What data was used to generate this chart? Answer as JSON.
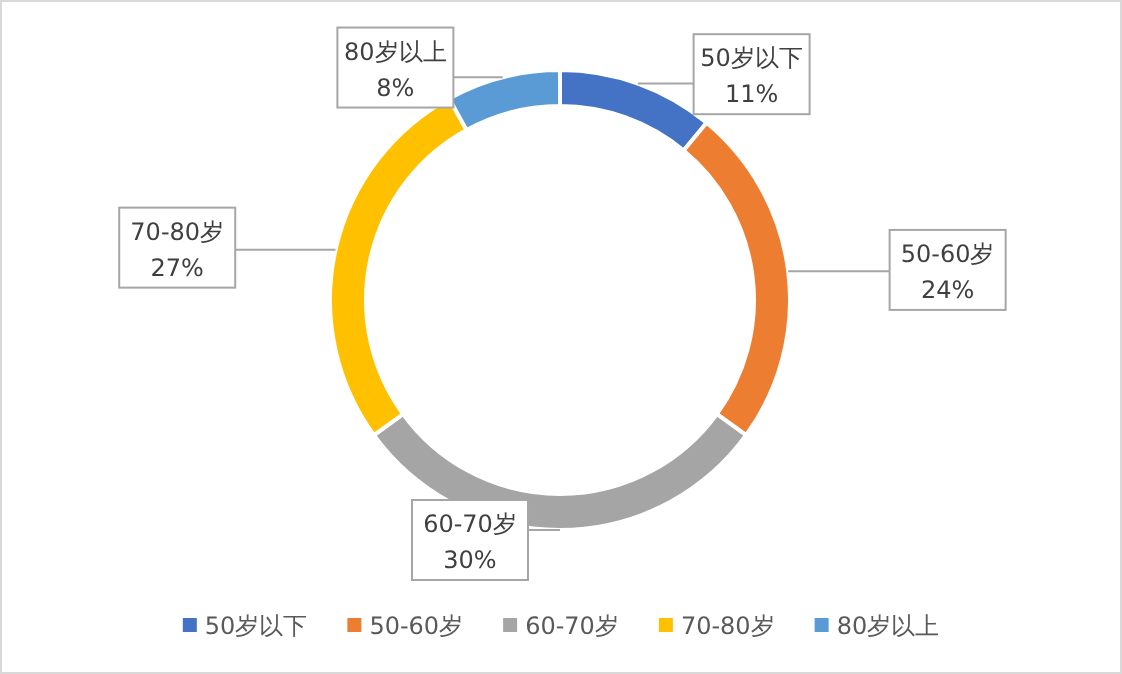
{
  "chart_data": {
    "type": "donut",
    "categories": [
      "50岁以下",
      "50-60岁",
      "60-70岁",
      "70-80岁",
      "80岁以上"
    ],
    "values": [
      11,
      24,
      30,
      27,
      8
    ],
    "colors": [
      "#4472c4",
      "#ed7d31",
      "#a5a5a5",
      "#ffc000",
      "#5b9bd5"
    ],
    "value_labels": [
      "11%",
      "24%",
      "30%",
      "27%",
      "8%"
    ],
    "legend": "bottom"
  }
}
